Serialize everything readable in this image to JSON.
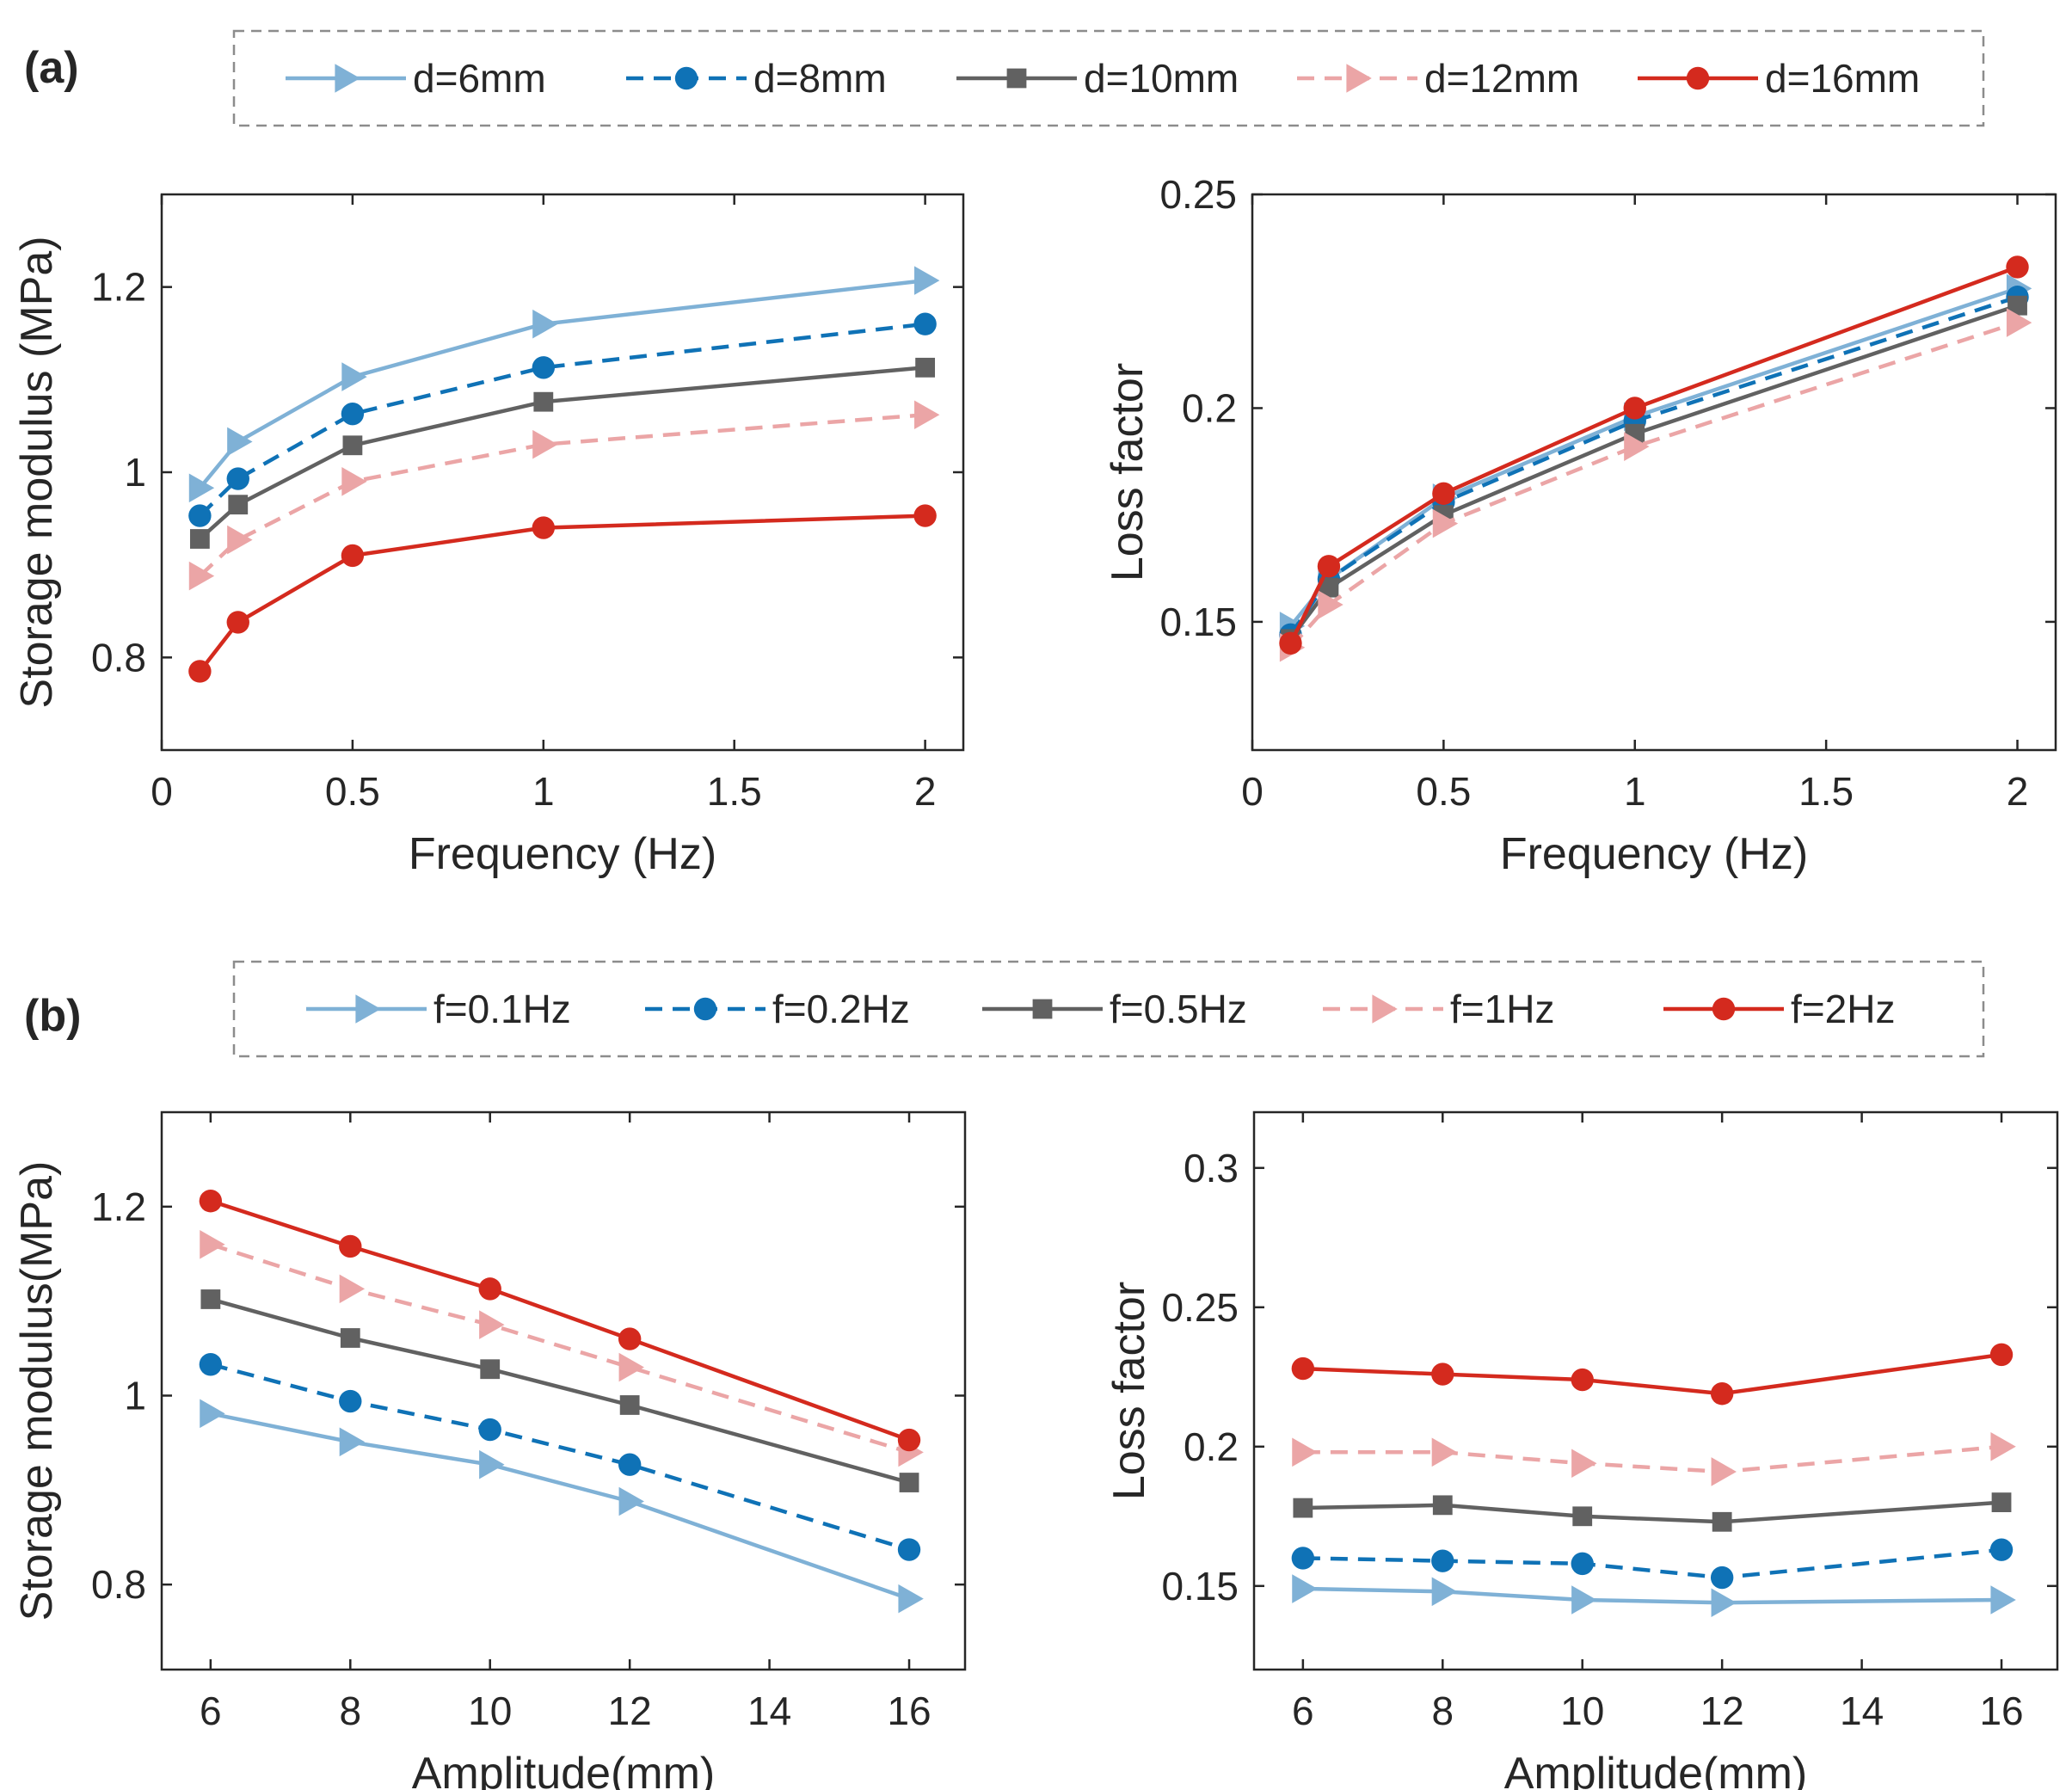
{
  "panels": {
    "a": {
      "label": "(a)"
    },
    "b": {
      "label": "(b)"
    }
  },
  "legends": {
    "a": [
      {
        "name": "d=6mm",
        "color": "#7fb1d6",
        "dash": "solid",
        "marker": "triangle"
      },
      {
        "name": "d=8mm",
        "color": "#0f72b6",
        "dash": "dashed",
        "marker": "circle"
      },
      {
        "name": "d=10mm",
        "color": "#616161",
        "dash": "solid",
        "marker": "square"
      },
      {
        "name": "d=12mm",
        "color": "#eba5a6",
        "dash": "dashed",
        "marker": "triangle"
      },
      {
        "name": "d=16mm",
        "color": "#d42a1e",
        "dash": "solid",
        "marker": "circle"
      }
    ],
    "b": [
      {
        "name": "f=0.1Hz",
        "color": "#7fb1d6",
        "dash": "solid",
        "marker": "triangle"
      },
      {
        "name": "f=0.2Hz",
        "color": "#0f72b6",
        "dash": "dashed",
        "marker": "circle"
      },
      {
        "name": "f=0.5Hz",
        "color": "#616161",
        "dash": "solid",
        "marker": "square"
      },
      {
        "name": "f=1Hz",
        "color": "#eba5a6",
        "dash": "dashed",
        "marker": "triangle"
      },
      {
        "name": "f=2Hz",
        "color": "#d42a1e",
        "dash": "solid",
        "marker": "circle"
      }
    ]
  },
  "chart_data": [
    {
      "id": "a-storage",
      "type": "line",
      "title": "",
      "xlabel": "Frequency (Hz)",
      "ylabel": "Storage modulus (MPa)",
      "xlim": [
        0,
        2.1
      ],
      "ylim": [
        0.7,
        1.3
      ],
      "xticks": [
        0,
        0.5,
        1,
        1.5,
        2
      ],
      "xtick_labels": [
        "0",
        "0.5",
        "1",
        "1.5",
        "2"
      ],
      "yticks": [
        0.8,
        1.0,
        1.2
      ],
      "ytick_labels": [
        "0.8",
        "1",
        "1.2"
      ],
      "x": [
        0.1,
        0.2,
        0.5,
        1,
        2
      ],
      "series": [
        {
          "name": "d=6mm",
          "values": [
            0.983,
            1.033,
            1.103,
            1.16,
            1.207
          ]
        },
        {
          "name": "d=8mm",
          "values": [
            0.953,
            0.993,
            1.063,
            1.113,
            1.16
          ]
        },
        {
          "name": "d=10mm",
          "values": [
            0.928,
            0.965,
            1.029,
            1.076,
            1.113
          ]
        },
        {
          "name": "d=12mm",
          "values": [
            0.888,
            0.927,
            0.99,
            1.03,
            1.062
          ]
        },
        {
          "name": "d=16mm",
          "values": [
            0.785,
            0.838,
            0.91,
            0.94,
            0.953
          ]
        }
      ]
    },
    {
      "id": "a-loss",
      "type": "line",
      "title": "",
      "xlabel": "Frequency (Hz)",
      "ylabel": "Loss factor",
      "xlim": [
        0,
        2.1
      ],
      "ylim": [
        0.12,
        0.25
      ],
      "xticks": [
        0,
        0.5,
        1,
        1.5,
        2
      ],
      "xtick_labels": [
        "0",
        "0.5",
        "1",
        "1.5",
        "2"
      ],
      "yticks": [
        0.15,
        0.2,
        0.25
      ],
      "ytick_labels": [
        "0.15",
        "0.2",
        "0.25"
      ],
      "x": [
        0.1,
        0.2,
        0.5,
        1,
        2
      ],
      "series": [
        {
          "name": "d=6mm",
          "values": [
            0.149,
            0.16,
            0.179,
            0.198,
            0.228
          ]
        },
        {
          "name": "d=8mm",
          "values": [
            0.147,
            0.16,
            0.178,
            0.197,
            0.226
          ]
        },
        {
          "name": "d=10mm",
          "values": [
            0.146,
            0.158,
            0.175,
            0.194,
            0.224
          ]
        },
        {
          "name": "d=12mm",
          "values": [
            0.144,
            0.154,
            0.173,
            0.191,
            0.22
          ]
        },
        {
          "name": "d=16mm",
          "values": [
            0.145,
            0.163,
            0.18,
            0.2,
            0.233
          ]
        }
      ]
    },
    {
      "id": "b-storage",
      "type": "line",
      "title": "",
      "xlabel": "Amplitude(mm)",
      "ylabel": "Storage modulus(MPa)",
      "xlim": [
        5.3,
        16.8
      ],
      "ylim": [
        0.71,
        1.3
      ],
      "xticks": [
        6,
        8,
        10,
        12,
        14,
        16
      ],
      "xtick_labels": [
        "6",
        "8",
        "10",
        "12",
        "14",
        "16"
      ],
      "yticks": [
        0.8,
        1.0,
        1.2
      ],
      "ytick_labels": [
        "0.8",
        "1",
        "1.2"
      ],
      "x": [
        6,
        8,
        10,
        12,
        16
      ],
      "series": [
        {
          "name": "f=0.1Hz",
          "values": [
            0.981,
            0.951,
            0.927,
            0.888,
            0.785
          ]
        },
        {
          "name": "f=0.2Hz",
          "values": [
            1.033,
            0.994,
            0.964,
            0.927,
            0.837
          ]
        },
        {
          "name": "f=0.5Hz",
          "values": [
            1.102,
            1.061,
            1.028,
            0.99,
            0.908
          ]
        },
        {
          "name": "f=1Hz",
          "values": [
            1.16,
            1.113,
            1.075,
            1.03,
            0.94
          ]
        },
        {
          "name": "f=2Hz",
          "values": [
            1.206,
            1.158,
            1.113,
            1.06,
            0.953
          ]
        }
      ]
    },
    {
      "id": "b-loss",
      "type": "line",
      "title": "",
      "xlabel": "Amplitude(mm)",
      "ylabel": "Loss factor",
      "xlim": [
        5.3,
        16.8
      ],
      "ylim": [
        0.12,
        0.32
      ],
      "xticks": [
        6,
        8,
        10,
        12,
        14,
        16
      ],
      "xtick_labels": [
        "6",
        "8",
        "10",
        "12",
        "14",
        "16"
      ],
      "yticks": [
        0.15,
        0.2,
        0.25,
        0.3
      ],
      "ytick_labels": [
        "0.15",
        "0.2",
        "0.25",
        "0.3"
      ],
      "x": [
        6,
        8,
        10,
        12,
        16
      ],
      "series": [
        {
          "name": "f=0.1Hz",
          "values": [
            0.149,
            0.148,
            0.145,
            0.144,
            0.145
          ]
        },
        {
          "name": "f=0.2Hz",
          "values": [
            0.16,
            0.159,
            0.158,
            0.153,
            0.163
          ]
        },
        {
          "name": "f=0.5Hz",
          "values": [
            0.178,
            0.179,
            0.175,
            0.173,
            0.18
          ]
        },
        {
          "name": "f=1Hz",
          "values": [
            0.198,
            0.198,
            0.194,
            0.191,
            0.2
          ]
        },
        {
          "name": "f=2Hz",
          "values": [
            0.228,
            0.226,
            0.224,
            0.219,
            0.233
          ]
        }
      ]
    }
  ]
}
